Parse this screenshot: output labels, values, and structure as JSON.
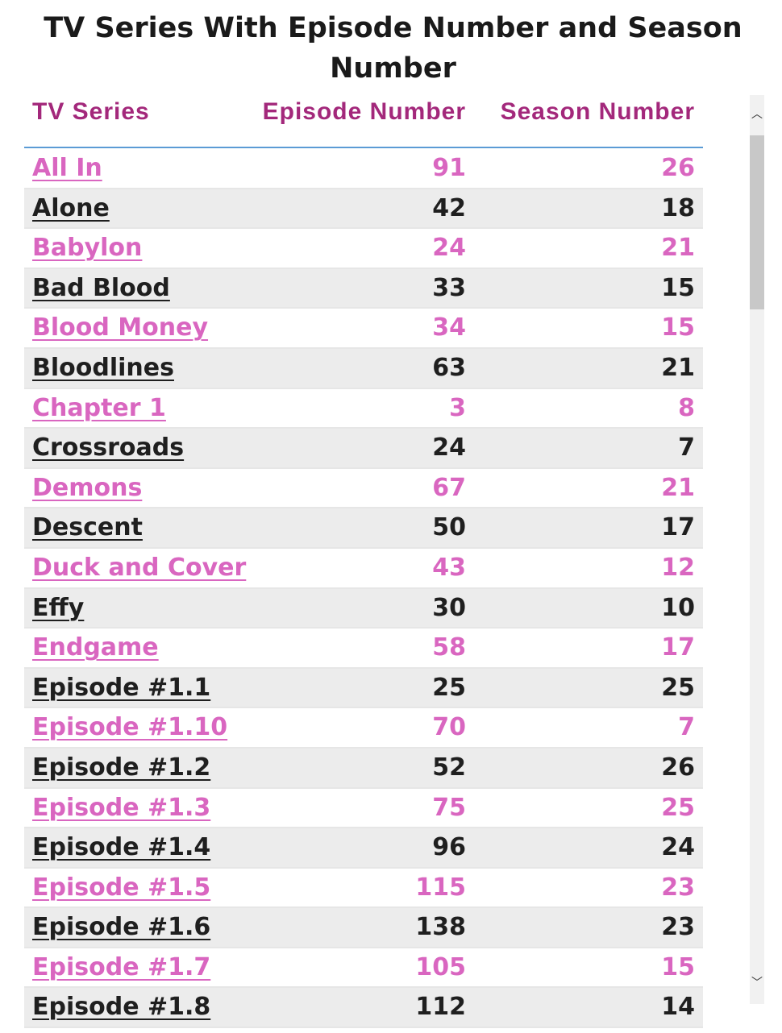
{
  "title": "TV Series With Episode Number and Season Number",
  "columns": {
    "name": "TV Series",
    "episode": "Episode Number",
    "season": "Season Number"
  },
  "colors": {
    "header_text": "#a3287b",
    "link_pink": "#d966c0",
    "dark_text": "#1f1f1f",
    "header_rule": "#5b9bd5",
    "alt_row": "#ececec"
  },
  "scrollbar": {
    "up_icon": "chevron-up-icon",
    "down_icon": "chevron-down-icon",
    "up_glyph": "︿",
    "down_glyph": "﹀"
  },
  "rows": [
    {
      "name": "All In",
      "episode": "91",
      "season": "26"
    },
    {
      "name": "Alone",
      "episode": "42",
      "season": "18"
    },
    {
      "name": "Babylon",
      "episode": "24",
      "season": "21"
    },
    {
      "name": "Bad Blood",
      "episode": "33",
      "season": "15"
    },
    {
      "name": "Blood Money",
      "episode": "34",
      "season": "15"
    },
    {
      "name": "Bloodlines",
      "episode": "63",
      "season": "21"
    },
    {
      "name": "Chapter 1",
      "episode": "3",
      "season": "8"
    },
    {
      "name": "Crossroads",
      "episode": "24",
      "season": "7"
    },
    {
      "name": "Demons",
      "episode": "67",
      "season": "21"
    },
    {
      "name": "Descent",
      "episode": "50",
      "season": "17"
    },
    {
      "name": "Duck and Cover",
      "episode": "43",
      "season": "12"
    },
    {
      "name": "Effy",
      "episode": "30",
      "season": "10"
    },
    {
      "name": "Endgame",
      "episode": "58",
      "season": "17"
    },
    {
      "name": "Episode #1.1",
      "episode": "25",
      "season": "25"
    },
    {
      "name": "Episode #1.10",
      "episode": "70",
      "season": "7"
    },
    {
      "name": "Episode #1.2",
      "episode": "52",
      "season": "26"
    },
    {
      "name": "Episode #1.3",
      "episode": "75",
      "season": "25"
    },
    {
      "name": "Episode #1.4",
      "episode": "96",
      "season": "24"
    },
    {
      "name": "Episode #1.5",
      "episode": "115",
      "season": "23"
    },
    {
      "name": "Episode #1.6",
      "episode": "138",
      "season": "23"
    },
    {
      "name": "Episode #1.7",
      "episode": "105",
      "season": "15"
    },
    {
      "name": "Episode #1.8",
      "episode": "112",
      "season": "14"
    }
  ]
}
